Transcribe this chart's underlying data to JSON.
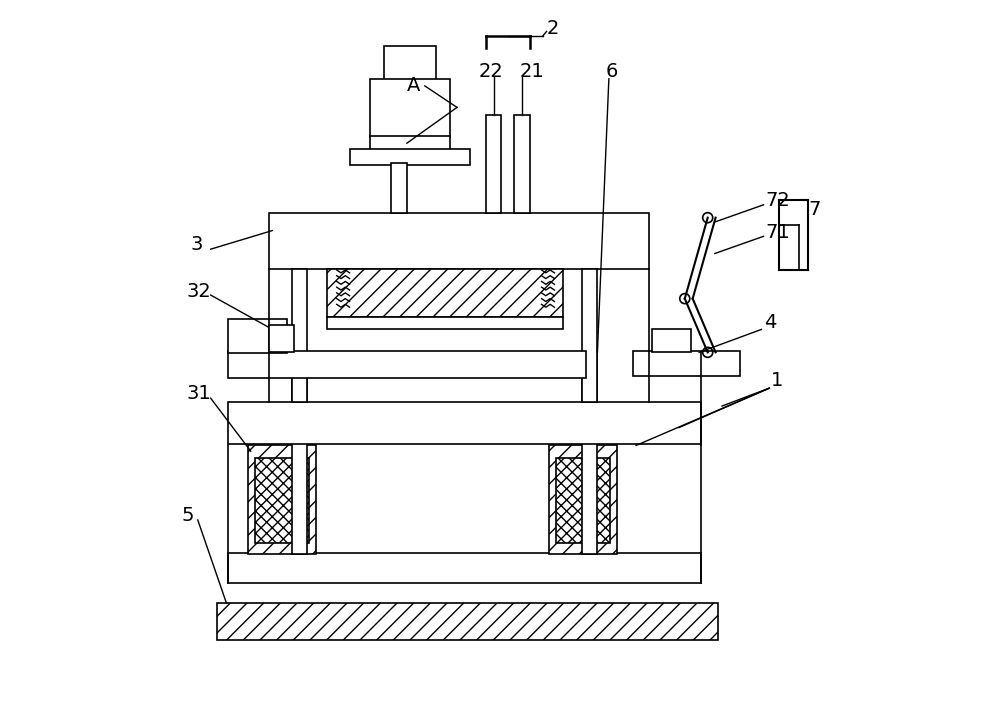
{
  "bg_color": "#ffffff",
  "line_color": "#000000",
  "figsize": [
    10.0,
    7.19
  ],
  "dpi": 100
}
